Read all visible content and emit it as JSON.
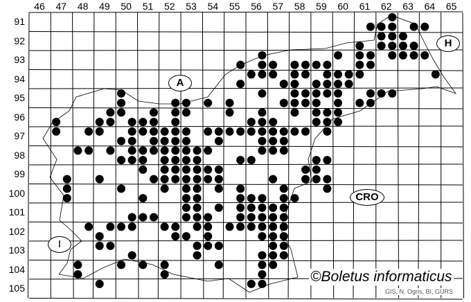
{
  "map": {
    "grid_columns": [
      "46",
      "47",
      "48",
      "49",
      "50",
      "51",
      "52",
      "53",
      "54",
      "55",
      "56",
      "57",
      "58",
      "59",
      "60",
      "61",
      "62",
      "63",
      "64",
      "65"
    ],
    "grid_rows": [
      "91",
      "92",
      "93",
      "94",
      "95",
      "96",
      "97",
      "98",
      "99",
      "100",
      "101",
      "102",
      "103",
      "104",
      "105"
    ],
    "country_labels": {
      "austria": "A",
      "hungary": "H",
      "croatia": "CRO",
      "italy": "I"
    },
    "copyright": "©Boletus informaticus",
    "source": "GIS, N. Ogris, BI, GURS",
    "dot_color": "#000000",
    "occurrences": [
      {
        "y": 90.75,
        "x": [
          62.25
        ]
      },
      {
        "y": 91.25,
        "x": [
          61.25,
          61.75,
          62.25,
          63.25,
          63.75
        ]
      },
      {
        "y": 91.75,
        "x": [
          61.75,
          62.25,
          62.75
        ]
      },
      {
        "y": 92.25,
        "x": [
          60.75,
          61.75,
          62.25,
          62.75,
          63.25
        ]
      },
      {
        "y": 92.75,
        "x": [
          56.25,
          59.75,
          60.75,
          61.25,
          62.25,
          62.75,
          63.25,
          63.75
        ]
      },
      {
        "y": 93.25,
        "x": [
          55.25,
          56.25,
          56.75,
          57.75,
          58.25,
          58.75,
          59.25,
          60.75,
          61.25
        ]
      },
      {
        "y": 93.75,
        "x": [
          55.75,
          56.25,
          56.75,
          57.75,
          58.25,
          59.25,
          59.75,
          60.25,
          60.75,
          64.25
        ]
      },
      {
        "y": 94.25,
        "x": [
          55.25,
          57.25,
          57.75,
          58.75,
          59.25,
          59.75,
          60.25
        ]
      },
      {
        "y": 94.75,
        "x": [
          49.75,
          56.25,
          57.75,
          58.25,
          58.75,
          59.25,
          59.75,
          61.25,
          61.75,
          62.25
        ]
      },
      {
        "y": 95.25,
        "x": [
          49.75,
          52.25,
          52.75,
          53.75,
          54.75,
          57.25,
          57.75,
          58.25,
          58.75,
          59.75,
          60.75,
          61.25
        ]
      },
      {
        "y": 95.75,
        "x": [
          49.25,
          49.75,
          51.25,
          52.25,
          52.75,
          54.75,
          56.25,
          57.75,
          58.75,
          59.25,
          59.75
        ]
      },
      {
        "y": 96.25,
        "x": [
          46.75,
          48.75,
          49.25,
          50.25,
          50.75,
          51.25,
          52.25,
          55.75,
          56.25,
          56.75,
          58.75,
          59.25,
          59.75
        ]
      },
      {
        "y": 96.75,
        "x": [
          46.75,
          48.25,
          48.75,
          50.25,
          50.75,
          51.25,
          51.75,
          52.25,
          52.75,
          53.75,
          54.25,
          54.75,
          55.25,
          55.75,
          56.25,
          56.75,
          57.25,
          57.75,
          58.25,
          59.25
        ]
      },
      {
        "y": 97.25,
        "x": [
          49.75,
          50.25,
          51.25,
          51.75,
          52.25,
          52.75,
          54.25,
          56.25,
          56.75,
          57.25
        ]
      },
      {
        "y": 97.75,
        "x": [
          47.75,
          48.25,
          49.25,
          50.25,
          50.75,
          51.25,
          51.75,
          52.25,
          52.75,
          53.25,
          53.75,
          56.25,
          56.75,
          57.25
        ]
      },
      {
        "y": 98.25,
        "x": [
          49.75,
          50.25,
          50.75,
          51.75,
          52.25,
          52.75,
          53.25,
          55.25,
          55.75,
          58.75,
          59.25
        ]
      },
      {
        "y": 98.75,
        "x": [
          50.75,
          51.75,
          52.25,
          52.75,
          53.25,
          53.75,
          54.25,
          58.25,
          58.75
        ]
      },
      {
        "y": 99.25,
        "x": [
          47.25,
          48.75,
          51.25,
          51.75,
          52.25,
          52.75,
          53.25,
          53.75,
          54.25,
          56.75,
          58.25,
          58.75,
          59.25
        ]
      },
      {
        "y": 99.75,
        "x": [
          47.25,
          49.75,
          51.75,
          52.75,
          53.25,
          54.25,
          55.25,
          57.25,
          59.25
        ]
      },
      {
        "y": 100.25,
        "x": [
          47.25,
          50.75,
          52.75,
          53.25,
          55.25,
          55.75,
          56.25,
          57.25,
          57.75
        ]
      },
      {
        "y": 100.75,
        "x": [
          52.75,
          53.25,
          54.25,
          55.25,
          55.75,
          56.25,
          56.75,
          57.25
        ]
      },
      {
        "y": 101.25,
        "x": [
          50.25,
          50.75,
          51.25,
          52.75,
          53.25,
          53.75,
          55.25,
          55.75,
          56.25,
          56.75,
          57.25
        ]
      },
      {
        "y": 101.75,
        "x": [
          48.25,
          49.25,
          49.75,
          50.25,
          51.75,
          52.25,
          53.25,
          53.75,
          54.75,
          55.25,
          55.75,
          56.25,
          56.75,
          57.25
        ]
      },
      {
        "y": 102.25,
        "x": [
          48.75,
          52.25,
          52.75,
          53.75,
          56.25,
          56.75,
          57.25
        ]
      },
      {
        "y": 102.75,
        "x": [
          48.75,
          49.25,
          53.25,
          53.75,
          54.25,
          56.75,
          57.25
        ]
      },
      {
        "y": 103.25,
        "x": [
          50.25,
          53.25,
          56.25,
          56.75,
          57.25
        ]
      },
      {
        "y": 103.75,
        "x": [
          47.75,
          49.75,
          50.75,
          51.75,
          54.25,
          56.25,
          56.75
        ]
      },
      {
        "y": 104.25,
        "x": [
          47.75,
          51.75,
          56.25
        ]
      },
      {
        "y": 104.75,
        "x": [
          48.75,
          55.75,
          56.25
        ]
      }
    ]
  }
}
